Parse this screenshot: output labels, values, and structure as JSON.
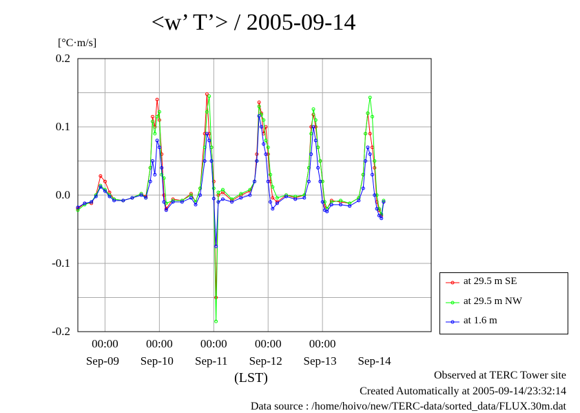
{
  "title": "<w’ T’> / 2005-09-14",
  "y_unit": "[°C·m/s]",
  "x_label": "(LST)",
  "footer": {
    "site": "Observed at TERC Tower site",
    "created": "Created Automatically at 2005-09-14/23:32:14",
    "source": "Data source : /home/hoivo/new/TERC-data/sorted_data/FLUX.30m.dat"
  },
  "colors": {
    "se": "#ff0000",
    "nw": "#00ff00",
    "low": "#0000ff",
    "grid": "#aaaaaa"
  },
  "chart_data": {
    "type": "line",
    "title": "<w’ T’> / 2005-09-14",
    "ylabel": "[°C·m/s]",
    "xlabel": "(LST)",
    "ylim": [
      -0.2,
      0.2
    ],
    "yticks": [
      "0.2",
      "0.1",
      "0.0",
      "-0.1",
      "-0.2"
    ],
    "xlim": [
      "2005-09-08 12:00",
      "2005-09-14 24:00"
    ],
    "time_ticks": [
      "00:00",
      "00:00",
      "00:00",
      "00:00",
      "00:00"
    ],
    "date_ticks": [
      "Sep-09",
      "Sep-10",
      "Sep-11",
      "Sep-12",
      "Sep-13",
      "Sep-14"
    ],
    "grid": true,
    "legend": "bottom-right",
    "series": [
      {
        "name": "at 29.5 m SE",
        "values": [
          [
            "2005-09-08 12:00",
            -0.02
          ],
          [
            "2005-09-08 15:00",
            -0.012
          ],
          [
            "2005-09-08 18:00",
            -0.012
          ],
          [
            "2005-09-08 20:00",
            0.0
          ],
          [
            "2005-09-08 22:00",
            0.028
          ],
          [
            "2005-09-09 00:00",
            0.02
          ],
          [
            "2005-09-09 02:00",
            0.004
          ],
          [
            "2005-09-09 04:00",
            -0.006
          ],
          [
            "2005-09-09 08:00",
            -0.008
          ],
          [
            "2005-09-09 12:00",
            -0.004
          ],
          [
            "2005-09-09 16:00",
            0.002
          ],
          [
            "2005-09-09 18:00",
            -0.002
          ],
          [
            "2005-09-09 20:00",
            0.04
          ],
          [
            "2005-09-09 21:00",
            0.115
          ],
          [
            "2005-09-09 22:00",
            0.1
          ],
          [
            "2005-09-09 23:00",
            0.14
          ],
          [
            "2005-09-10 00:00",
            0.11
          ],
          [
            "2005-09-10 01:00",
            0.06
          ],
          [
            "2005-09-10 02:00",
            0.0
          ],
          [
            "2005-09-10 03:00",
            -0.02
          ],
          [
            "2005-09-10 06:00",
            -0.006
          ],
          [
            "2005-09-10 10:00",
            -0.008
          ],
          [
            "2005-09-10 14:00",
            0.002
          ],
          [
            "2005-09-10 16:00",
            -0.01
          ],
          [
            "2005-09-10 18:00",
            0.01
          ],
          [
            "2005-09-10 20:00",
            0.09
          ],
          [
            "2005-09-10 21:00",
            0.148
          ],
          [
            "2005-09-10 22:00",
            0.09
          ],
          [
            "2005-09-10 23:00",
            0.07
          ],
          [
            "2005-09-11 00:00",
            0.02
          ],
          [
            "2005-09-11 01:00",
            -0.15
          ],
          [
            "2005-09-11 02:00",
            0.0
          ],
          [
            "2005-09-11 04:00",
            0.004
          ],
          [
            "2005-09-11 08:00",
            -0.008
          ],
          [
            "2005-09-11 12:00",
            0.0
          ],
          [
            "2005-09-11 16:00",
            0.006
          ],
          [
            "2005-09-11 18:00",
            0.02
          ],
          [
            "2005-09-11 19:00",
            0.06
          ],
          [
            "2005-09-11 20:00",
            0.136
          ],
          [
            "2005-09-11 21:00",
            0.12
          ],
          [
            "2005-09-11 22:00",
            0.09
          ],
          [
            "2005-09-11 23:00",
            0.1
          ],
          [
            "2005-09-12 00:00",
            0.06
          ],
          [
            "2005-09-12 01:00",
            0.02
          ],
          [
            "2005-09-12 02:00",
            -0.004
          ],
          [
            "2005-09-12 04:00",
            -0.01
          ],
          [
            "2005-09-12 08:00",
            0.0
          ],
          [
            "2005-09-12 12:00",
            -0.004
          ],
          [
            "2005-09-12 16:00",
            0.0
          ],
          [
            "2005-09-12 18:00",
            0.04
          ],
          [
            "2005-09-12 19:00",
            0.1
          ],
          [
            "2005-09-12 20:00",
            0.118
          ],
          [
            "2005-09-12 21:00",
            0.1
          ],
          [
            "2005-09-12 22:00",
            0.07
          ],
          [
            "2005-09-12 23:00",
            0.05
          ],
          [
            "2005-09-13 00:00",
            0.02
          ],
          [
            "2005-09-13 01:00",
            -0.016
          ],
          [
            "2005-09-13 02:00",
            -0.02
          ],
          [
            "2005-09-13 04:00",
            -0.008
          ],
          [
            "2005-09-13 08:00",
            -0.01
          ],
          [
            "2005-09-13 12:00",
            -0.012
          ],
          [
            "2005-09-13 16:00",
            -0.004
          ],
          [
            "2005-09-13 18:00",
            0.03
          ],
          [
            "2005-09-13 19:00",
            0.09
          ],
          [
            "2005-09-13 20:00",
            0.12
          ],
          [
            "2005-09-13 21:00",
            0.09
          ],
          [
            "2005-09-13 22:00",
            0.07
          ],
          [
            "2005-09-13 23:00",
            0.04
          ],
          [
            "2005-09-14 00:00",
            -0.01
          ],
          [
            "2005-09-14 01:00",
            -0.022
          ],
          [
            "2005-09-14 02:00",
            -0.03
          ],
          [
            "2005-09-14 03:00",
            -0.01
          ]
        ]
      },
      {
        "name": "at 29.5 m NW",
        "values": [
          [
            "2005-09-08 12:00",
            -0.022
          ],
          [
            "2005-09-08 15:00",
            -0.014
          ],
          [
            "2005-09-08 18:00",
            -0.01
          ],
          [
            "2005-09-08 20:00",
            0.0
          ],
          [
            "2005-09-08 22:00",
            0.014
          ],
          [
            "2005-09-09 00:00",
            0.008
          ],
          [
            "2005-09-09 02:00",
            0.0
          ],
          [
            "2005-09-09 04:00",
            -0.006
          ],
          [
            "2005-09-09 08:00",
            -0.008
          ],
          [
            "2005-09-09 12:00",
            -0.004
          ],
          [
            "2005-09-09 16:00",
            0.002
          ],
          [
            "2005-09-09 18:00",
            -0.004
          ],
          [
            "2005-09-09 20:00",
            0.04
          ],
          [
            "2005-09-09 21:00",
            0.108
          ],
          [
            "2005-09-09 22:00",
            0.09
          ],
          [
            "2005-09-09 23:00",
            0.115
          ],
          [
            "2005-09-10 00:00",
            0.122
          ],
          [
            "2005-09-10 01:00",
            0.03
          ],
          [
            "2005-09-10 02:00",
            0.025
          ],
          [
            "2005-09-10 03:00",
            -0.012
          ],
          [
            "2005-09-10 06:00",
            -0.008
          ],
          [
            "2005-09-10 10:00",
            -0.008
          ],
          [
            "2005-09-10 14:00",
            0.0
          ],
          [
            "2005-09-10 16:00",
            -0.01
          ],
          [
            "2005-09-10 18:00",
            0.01
          ],
          [
            "2005-09-10 20:00",
            0.07
          ],
          [
            "2005-09-10 21:00",
            0.122
          ],
          [
            "2005-09-10 22:00",
            0.145
          ],
          [
            "2005-09-10 23:00",
            0.07
          ],
          [
            "2005-09-11 00:00",
            0.01
          ],
          [
            "2005-09-11 01:00",
            -0.185
          ],
          [
            "2005-09-11 02:00",
            0.004
          ],
          [
            "2005-09-11 04:00",
            0.008
          ],
          [
            "2005-09-11 08:00",
            -0.006
          ],
          [
            "2005-09-11 12:00",
            0.002
          ],
          [
            "2005-09-11 16:00",
            0.008
          ],
          [
            "2005-09-11 18:00",
            0.02
          ],
          [
            "2005-09-11 19:00",
            0.05
          ],
          [
            "2005-09-11 20:00",
            0.13
          ],
          [
            "2005-09-11 21:00",
            0.118
          ],
          [
            "2005-09-11 22:00",
            0.11
          ],
          [
            "2005-09-11 23:00",
            0.08
          ],
          [
            "2005-09-12 00:00",
            0.07
          ],
          [
            "2005-09-12 01:00",
            0.03
          ],
          [
            "2005-09-12 02:00",
            0.012
          ],
          [
            "2005-09-12 04:00",
            -0.004
          ],
          [
            "2005-09-12 08:00",
            0.0
          ],
          [
            "2005-09-12 12:00",
            -0.002
          ],
          [
            "2005-09-12 16:00",
            0.0
          ],
          [
            "2005-09-12 18:00",
            0.04
          ],
          [
            "2005-09-12 19:00",
            0.09
          ],
          [
            "2005-09-12 20:00",
            0.126
          ],
          [
            "2005-09-12 21:00",
            0.11
          ],
          [
            "2005-09-12 22:00",
            0.07
          ],
          [
            "2005-09-12 23:00",
            0.05
          ],
          [
            "2005-09-13 00:00",
            0.02
          ],
          [
            "2005-09-13 01:00",
            -0.01
          ],
          [
            "2005-09-13 02:00",
            -0.02
          ],
          [
            "2005-09-13 04:00",
            -0.01
          ],
          [
            "2005-09-13 08:00",
            -0.008
          ],
          [
            "2005-09-13 12:00",
            -0.012
          ],
          [
            "2005-09-13 16:00",
            -0.004
          ],
          [
            "2005-09-13 18:00",
            0.03
          ],
          [
            "2005-09-13 19:00",
            0.09
          ],
          [
            "2005-09-13 20:00",
            0.12
          ],
          [
            "2005-09-13 21:00",
            0.143
          ],
          [
            "2005-09-13 22:00",
            0.115
          ],
          [
            "2005-09-13 23:00",
            0.05
          ],
          [
            "2005-09-14 00:00",
            0.0
          ],
          [
            "2005-09-14 01:00",
            -0.02
          ],
          [
            "2005-09-14 02:00",
            -0.028
          ],
          [
            "2005-09-14 03:00",
            -0.008
          ]
        ]
      },
      {
        "name": "at 1.6 m",
        "values": [
          [
            "2005-09-08 12:00",
            -0.018
          ],
          [
            "2005-09-08 15:00",
            -0.012
          ],
          [
            "2005-09-08 18:00",
            -0.01
          ],
          [
            "2005-09-08 20:00",
            -0.002
          ],
          [
            "2005-09-08 22:00",
            0.012
          ],
          [
            "2005-09-09 00:00",
            0.006
          ],
          [
            "2005-09-09 02:00",
            -0.002
          ],
          [
            "2005-09-09 04:00",
            -0.008
          ],
          [
            "2005-09-09 08:00",
            -0.008
          ],
          [
            "2005-09-09 12:00",
            -0.004
          ],
          [
            "2005-09-09 16:00",
            0.0
          ],
          [
            "2005-09-09 18:00",
            -0.004
          ],
          [
            "2005-09-09 20:00",
            0.02
          ],
          [
            "2005-09-09 21:00",
            0.05
          ],
          [
            "2005-09-09 22:00",
            0.03
          ],
          [
            "2005-09-09 23:00",
            0.08
          ],
          [
            "2005-09-10 00:00",
            0.07
          ],
          [
            "2005-09-10 01:00",
            0.04
          ],
          [
            "2005-09-10 02:00",
            -0.01
          ],
          [
            "2005-09-10 03:00",
            -0.022
          ],
          [
            "2005-09-10 06:00",
            -0.01
          ],
          [
            "2005-09-10 10:00",
            -0.01
          ],
          [
            "2005-09-10 14:00",
            -0.004
          ],
          [
            "2005-09-10 16:00",
            -0.014
          ],
          [
            "2005-09-10 18:00",
            0.0
          ],
          [
            "2005-09-10 20:00",
            0.05
          ],
          [
            "2005-09-10 21:00",
            0.09
          ],
          [
            "2005-09-10 22:00",
            0.08
          ],
          [
            "2005-09-10 23:00",
            0.05
          ],
          [
            "2005-09-11 00:00",
            -0.005
          ],
          [
            "2005-09-11 01:00",
            -0.075
          ],
          [
            "2005-09-11 02:00",
            -0.01
          ],
          [
            "2005-09-11 04:00",
            -0.006
          ],
          [
            "2005-09-11 08:00",
            -0.01
          ],
          [
            "2005-09-11 12:00",
            -0.004
          ],
          [
            "2005-09-11 16:00",
            0.0
          ],
          [
            "2005-09-11 18:00",
            0.02
          ],
          [
            "2005-09-11 19:00",
            0.05
          ],
          [
            "2005-09-11 20:00",
            0.116
          ],
          [
            "2005-09-11 21:00",
            0.1
          ],
          [
            "2005-09-11 22:00",
            0.075
          ],
          [
            "2005-09-11 23:00",
            0.06
          ],
          [
            "2005-09-12 00:00",
            0.02
          ],
          [
            "2005-09-12 01:00",
            -0.01
          ],
          [
            "2005-09-12 02:00",
            -0.02
          ],
          [
            "2005-09-12 04:00",
            -0.012
          ],
          [
            "2005-09-12 08:00",
            -0.002
          ],
          [
            "2005-09-12 12:00",
            -0.006
          ],
          [
            "2005-09-12 16:00",
            -0.004
          ],
          [
            "2005-09-12 18:00",
            0.02
          ],
          [
            "2005-09-12 19:00",
            0.06
          ],
          [
            "2005-09-12 20:00",
            0.1
          ],
          [
            "2005-09-12 21:00",
            0.08
          ],
          [
            "2005-09-12 22:00",
            0.04
          ],
          [
            "2005-09-12 23:00",
            0.02
          ],
          [
            "2005-09-13 00:00",
            -0.01
          ],
          [
            "2005-09-13 01:00",
            -0.022
          ],
          [
            "2005-09-13 02:00",
            -0.024
          ],
          [
            "2005-09-13 04:00",
            -0.014
          ],
          [
            "2005-09-13 08:00",
            -0.014
          ],
          [
            "2005-09-13 12:00",
            -0.016
          ],
          [
            "2005-09-13 16:00",
            -0.008
          ],
          [
            "2005-09-13 18:00",
            0.01
          ],
          [
            "2005-09-13 19:00",
            0.05
          ],
          [
            "2005-09-13 20:00",
            0.07
          ],
          [
            "2005-09-13 21:00",
            0.06
          ],
          [
            "2005-09-13 22:00",
            0.03
          ],
          [
            "2005-09-13 23:00",
            0.0
          ],
          [
            "2005-09-14 00:00",
            -0.02
          ],
          [
            "2005-09-14 01:00",
            -0.03
          ],
          [
            "2005-09-14 02:00",
            -0.034
          ],
          [
            "2005-09-14 03:00",
            -0.01
          ]
        ]
      }
    ]
  }
}
